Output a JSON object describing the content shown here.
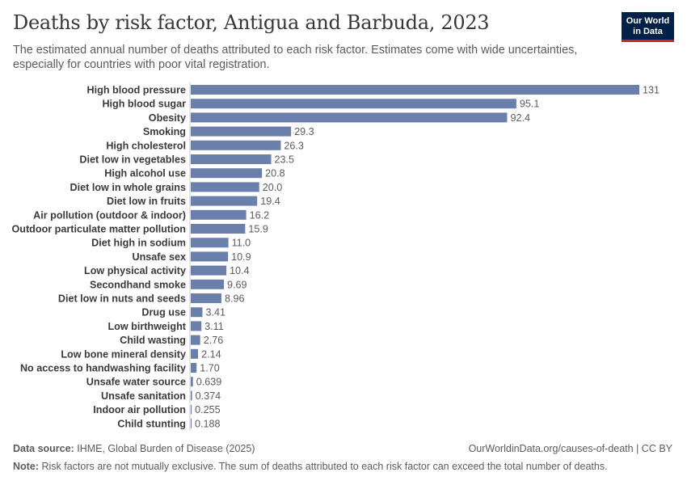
{
  "header": {
    "title": "Deaths by risk factor, Antigua and Barbuda, 2023",
    "subtitle": "The estimated annual number of deaths attributed to each risk factor. Estimates come with wide uncertainties, especially for countries with poor vital registration.",
    "logo_line1": "Our World",
    "logo_line2": "in Data"
  },
  "footer": {
    "source_label": "Data source:",
    "source_text": "IHME, Global Burden of Disease (2025)",
    "url": "OurWorldinData.org/causes-of-death | CC BY",
    "note_label": "Note:",
    "note_text": "Risk factors are not mutually exclusive. The sum of deaths attributed to each risk factor can exceed the total number of deaths."
  },
  "colors": {
    "bar": "#6b7fab",
    "label": "#3a3a3a",
    "value": "#5b5b5b",
    "axis": "#cccccc",
    "logo_bg": "#002147",
    "logo_accent": "#ce261e"
  },
  "chart_data": {
    "type": "bar",
    "orientation": "horizontal",
    "categories": [
      "High blood pressure",
      "High blood sugar",
      "Obesity",
      "Smoking",
      "High cholesterol",
      "Diet low in vegetables",
      "High alcohol use",
      "Diet low in whole grains",
      "Diet low in fruits",
      "Air pollution (outdoor & indoor)",
      "Outdoor particulate matter pollution",
      "Diet high in sodium",
      "Unsafe sex",
      "Low physical activity",
      "Secondhand smoke",
      "Diet low in nuts and seeds",
      "Drug use",
      "Low birthweight",
      "Child wasting",
      "Low bone mineral density",
      "No access to handwashing facility",
      "Unsafe water source",
      "Unsafe sanitation",
      "Indoor air pollution",
      "Child stunting"
    ],
    "values": [
      131,
      95.1,
      92.4,
      29.3,
      26.3,
      23.5,
      20.8,
      20.0,
      19.4,
      16.2,
      15.9,
      11.0,
      10.9,
      10.4,
      9.69,
      8.96,
      3.41,
      3.11,
      2.76,
      2.14,
      1.7,
      0.639,
      0.374,
      0.255,
      0.188
    ],
    "value_labels": [
      "131",
      "95.1",
      "92.4",
      "29.3",
      "26.3",
      "23.5",
      "20.8",
      "20.0",
      "19.4",
      "16.2",
      "15.9",
      "11.0",
      "10.9",
      "10.4",
      "9.69",
      "8.96",
      "3.41",
      "3.11",
      "2.76",
      "2.14",
      "1.70",
      "0.639",
      "0.374",
      "0.255",
      "0.188"
    ],
    "xlim": [
      0,
      131
    ],
    "title": "",
    "xlabel": "",
    "ylabel": ""
  }
}
